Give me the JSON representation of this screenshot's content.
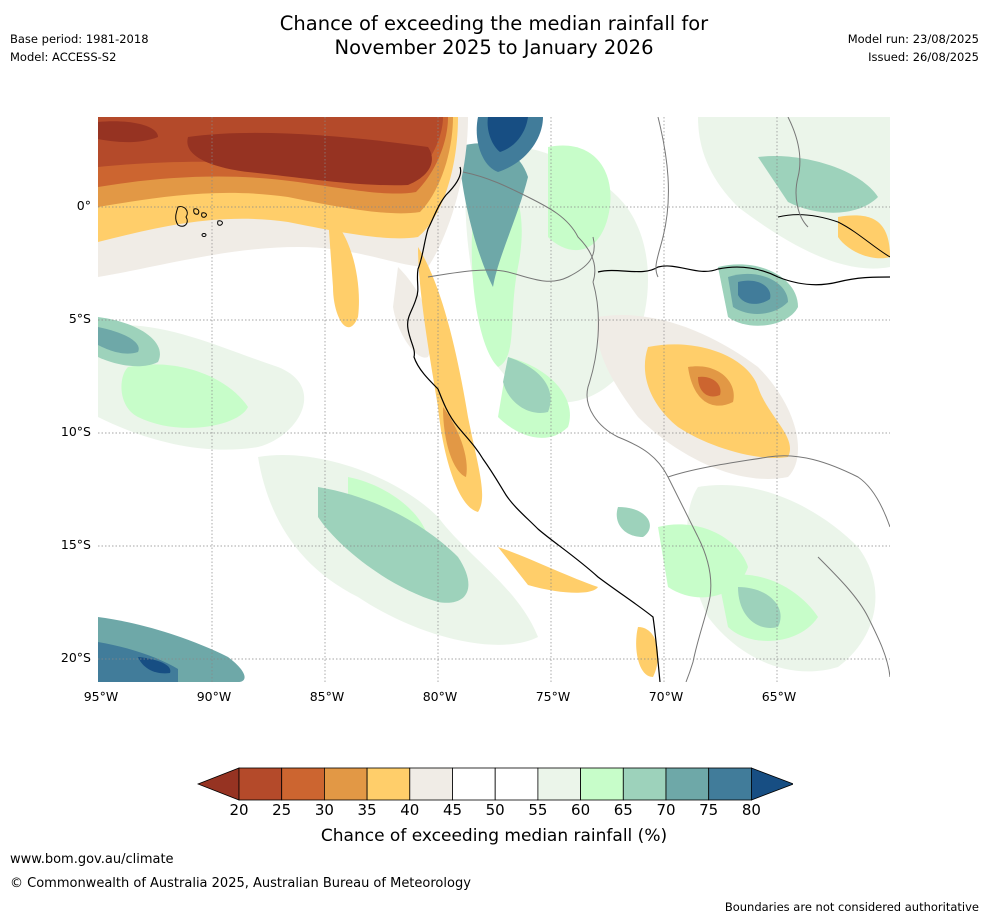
{
  "header": {
    "base_period": "Base period: 1981-2018",
    "model": "Model: ACCESS-S2",
    "title_line1": "Chance of exceeding the median rainfall for",
    "title_line2": "November 2025 to January 2026",
    "model_run": "Model run: 23/08/2025",
    "issued": "Issued: 26/08/2025"
  },
  "map": {
    "lon_labels": [
      "95°W",
      "90°W",
      "85°W",
      "80°W",
      "75°W",
      "70°W",
      "65°W"
    ],
    "lat_labels": [
      "0°",
      "5°S",
      "10°S",
      "15°S",
      "20°S"
    ]
  },
  "colorbar": {
    "ticks": [
      "20",
      "25",
      "30",
      "35",
      "40",
      "45",
      "50",
      "55",
      "60",
      "65",
      "70",
      "75",
      "80"
    ],
    "colors": [
      "#963322",
      "#b44a2a",
      "#cc6530",
      "#e29845",
      "#ffce6a",
      "#f0ece6",
      "#ffffff",
      "#ffffff",
      "#ebf5ea",
      "#c7fdc9",
      "#9dd2bb",
      "#6ea8a8",
      "#417c9a",
      "#174e83"
    ],
    "label": "Chance of exceeding median rainfall (%)"
  },
  "footer": {
    "website": "www.bom.gov.au/climate",
    "copyright": "© Commonwealth of Australia 2025, Australian Bureau of Meteorology",
    "disclaimer": "Boundaries are not considered authoritative"
  }
}
